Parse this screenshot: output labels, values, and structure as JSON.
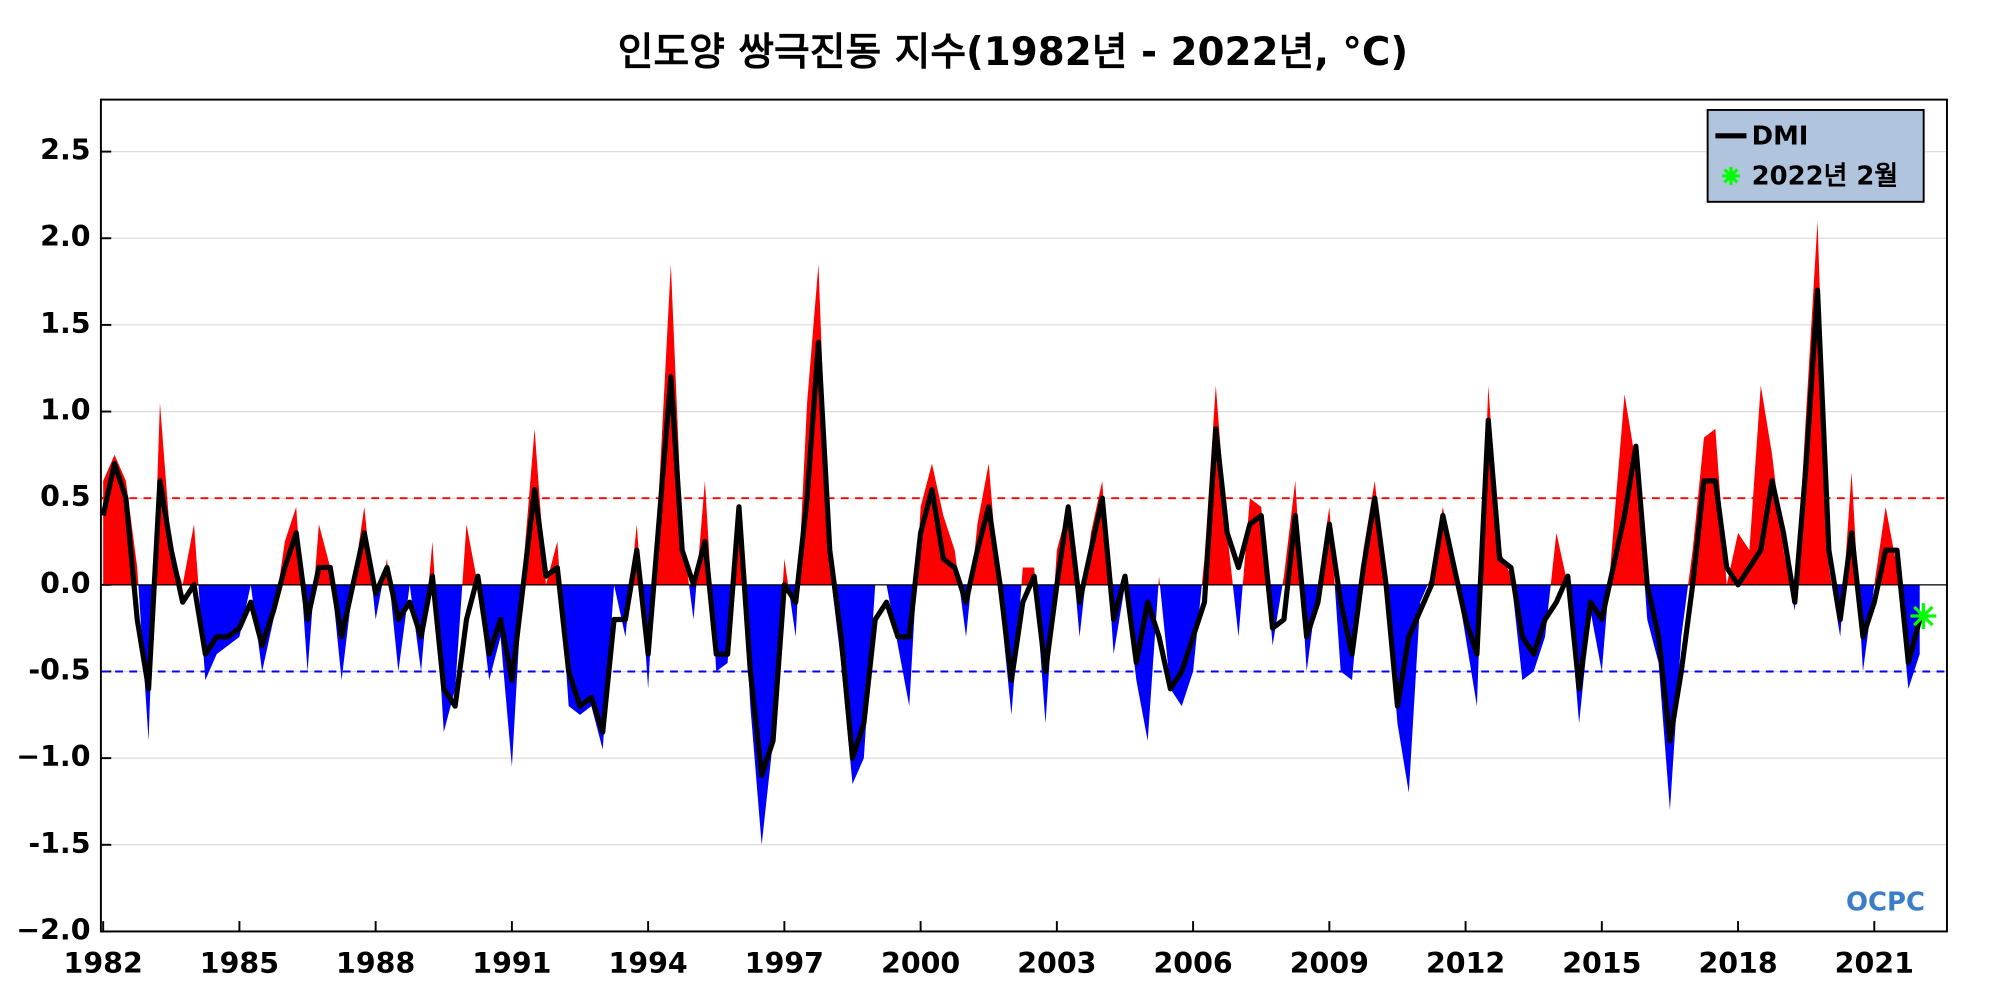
{
  "chart_data": {
    "type": "area_line",
    "title": "인도양 쌍극진동 지수(1982년 - 2022년, °C)",
    "logo": "OCPC",
    "x": [
      1982,
      1982.25,
      1982.5,
      1982.75,
      1983,
      1983.25,
      1983.5,
      1983.75,
      1984,
      1984.25,
      1984.5,
      1984.75,
      1985,
      1985.25,
      1985.5,
      1985.75,
      1986,
      1986.25,
      1986.5,
      1986.75,
      1987,
      1987.25,
      1987.5,
      1987.75,
      1988,
      1988.25,
      1988.5,
      1988.75,
      1989,
      1989.25,
      1989.5,
      1989.75,
      1990,
      1990.25,
      1990.5,
      1990.75,
      1991,
      1991.25,
      1991.5,
      1991.75,
      1992,
      1992.25,
      1992.5,
      1992.75,
      1993,
      1993.25,
      1993.5,
      1993.75,
      1994,
      1994.25,
      1994.5,
      1994.75,
      1995,
      1995.25,
      1995.5,
      1995.75,
      1996,
      1996.25,
      1996.5,
      1996.75,
      1997,
      1997.25,
      1997.5,
      1997.75,
      1998,
      1998.25,
      1998.5,
      1998.75,
      1999,
      1999.25,
      1999.5,
      1999.75,
      2000,
      2000.25,
      2000.5,
      2000.75,
      2001,
      2001.25,
      2001.5,
      2001.75,
      2002,
      2002.25,
      2002.5,
      2002.75,
      2003,
      2003.25,
      2003.5,
      2003.75,
      2004,
      2004.25,
      2004.5,
      2004.75,
      2005,
      2005.25,
      2005.5,
      2005.75,
      2006,
      2006.25,
      2006.5,
      2006.75,
      2007,
      2007.25,
      2007.5,
      2007.75,
      2008,
      2008.25,
      2008.5,
      2008.75,
      2009,
      2009.25,
      2009.5,
      2009.75,
      2010,
      2010.25,
      2010.5,
      2010.75,
      2011,
      2011.25,
      2011.5,
      2011.75,
      2012,
      2012.25,
      2012.5,
      2012.75,
      2013,
      2013.25,
      2013.5,
      2013.75,
      2014,
      2014.25,
      2014.5,
      2014.75,
      2015,
      2015.25,
      2015.5,
      2015.75,
      2016,
      2016.25,
      2016.5,
      2016.75,
      2017,
      2017.25,
      2017.5,
      2017.75,
      2018,
      2018.25,
      2018.5,
      2018.75,
      2019,
      2019.25,
      2019.5,
      2019.75,
      2020,
      2020.25,
      2020.5,
      2020.75,
      2021,
      2021.25,
      2021.5,
      2021.75,
      2022
    ],
    "area_values": [
      0.6,
      0.75,
      0.6,
      0.1,
      -0.9,
      1.05,
      0.2,
      0.0,
      0.35,
      -0.55,
      -0.4,
      -0.35,
      -0.3,
      0.0,
      -0.5,
      -0.2,
      0.25,
      0.45,
      -0.5,
      0.35,
      0.1,
      -0.55,
      0.0,
      0.45,
      -0.2,
      0.15,
      -0.5,
      0.0,
      -0.5,
      0.25,
      -0.85,
      -0.6,
      0.35,
      0.0,
      -0.55,
      -0.3,
      -1.05,
      0.1,
      0.9,
      0.0,
      0.25,
      -0.7,
      -0.75,
      -0.7,
      -0.95,
      0.0,
      -0.3,
      0.35,
      -0.6,
      0.6,
      1.85,
      0.3,
      -0.2,
      0.6,
      -0.5,
      -0.45,
      0.45,
      -0.7,
      -1.5,
      -0.9,
      0.15,
      -0.3,
      1.05,
      1.85,
      0.1,
      -0.45,
      -1.15,
      -1.0,
      0.0,
      0.0,
      -0.35,
      -0.7,
      0.45,
      0.7,
      0.4,
      0.2,
      -0.3,
      0.35,
      0.7,
      -0.1,
      -0.75,
      0.1,
      0.1,
      -0.8,
      0.2,
      0.45,
      -0.3,
      0.3,
      0.6,
      -0.4,
      0.0,
      -0.55,
      -0.9,
      0.05,
      -0.6,
      -0.7,
      -0.5,
      0.15,
      1.15,
      0.3,
      -0.3,
      0.5,
      0.45,
      -0.35,
      0.05,
      0.6,
      -0.5,
      0.0,
      0.45,
      -0.5,
      -0.55,
      0.2,
      0.6,
      0.0,
      -0.8,
      -1.2,
      -0.1,
      0.05,
      0.45,
      0.1,
      -0.3,
      -0.7,
      1.15,
      0.2,
      0.05,
      -0.55,
      -0.5,
      -0.3,
      0.3,
      0.0,
      -0.8,
      -0.15,
      -0.5,
      0.3,
      1.1,
      0.7,
      -0.2,
      -0.45,
      -1.3,
      -0.3,
      0.2,
      0.85,
      0.9,
      0.0,
      0.3,
      0.2,
      1.15,
      0.75,
      0.2,
      -0.15,
      1.0,
      2.1,
      0.1,
      -0.3,
      0.65,
      -0.5,
      0.0,
      0.45,
      0.1,
      -0.6,
      -0.4
    ],
    "positive_color": "#ff0000",
    "negative_color": "#0000ff",
    "series": [
      {
        "name": "DMI",
        "color": "#000000",
        "values": [
          0.4,
          0.7,
          0.5,
          -0.2,
          -0.6,
          0.6,
          0.2,
          -0.1,
          0.0,
          -0.4,
          -0.3,
          -0.3,
          -0.25,
          -0.1,
          -0.35,
          -0.15,
          0.1,
          0.3,
          -0.2,
          0.1,
          0.1,
          -0.3,
          0.0,
          0.3,
          -0.05,
          0.1,
          -0.2,
          -0.1,
          -0.3,
          0.05,
          -0.6,
          -0.7,
          -0.2,
          0.05,
          -0.4,
          -0.2,
          -0.55,
          0.0,
          0.55,
          0.05,
          0.1,
          -0.5,
          -0.7,
          -0.65,
          -0.85,
          -0.2,
          -0.2,
          0.2,
          -0.4,
          0.4,
          1.2,
          0.2,
          0.0,
          0.25,
          -0.4,
          -0.4,
          0.45,
          -0.5,
          -1.1,
          -0.9,
          0.0,
          -0.1,
          0.5,
          1.4,
          0.2,
          -0.3,
          -1.0,
          -0.8,
          -0.2,
          -0.1,
          -0.3,
          -0.3,
          0.3,
          0.55,
          0.15,
          0.1,
          -0.1,
          0.2,
          0.45,
          0.0,
          -0.55,
          -0.1,
          0.05,
          -0.5,
          0.0,
          0.45,
          -0.1,
          0.2,
          0.5,
          -0.2,
          0.05,
          -0.45,
          -0.1,
          -0.3,
          -0.6,
          -0.5,
          -0.3,
          -0.1,
          0.9,
          0.3,
          0.1,
          0.35,
          0.4,
          -0.25,
          -0.2,
          0.4,
          -0.3,
          -0.1,
          0.35,
          -0.1,
          -0.4,
          0.1,
          0.5,
          0.0,
          -0.7,
          -0.3,
          -0.15,
          0.0,
          0.4,
          0.1,
          -0.2,
          -0.4,
          0.95,
          0.15,
          0.1,
          -0.3,
          -0.4,
          -0.2,
          -0.1,
          0.05,
          -0.6,
          -0.1,
          -0.2,
          0.1,
          0.4,
          0.8,
          0.0,
          -0.3,
          -0.9,
          -0.5,
          0.0,
          0.6,
          0.6,
          0.1,
          0.0,
          0.1,
          0.2,
          0.6,
          0.3,
          -0.1,
          0.7,
          1.7,
          0.2,
          -0.2,
          0.3,
          -0.3,
          -0.1,
          0.2,
          0.2,
          -0.45,
          -0.2
        ]
      }
    ],
    "highlight": {
      "name": "2022년 2월",
      "x": 2022.08,
      "y": -0.18,
      "color": "#00ff00"
    },
    "reference_lines": [
      {
        "value": 0.5,
        "color": "#ff0000"
      },
      {
        "value": -0.5,
        "color": "#0000ff"
      }
    ],
    "xlim": [
      1981.95,
      2022.6
    ],
    "xticks": [
      1982,
      1985,
      1988,
      1991,
      1994,
      1997,
      2000,
      2003,
      2006,
      2009,
      2012,
      2015,
      2018,
      2021
    ],
    "ylim": [
      -2.0,
      2.8
    ],
    "yticks": [
      {
        "value": -2,
        "label": "−2.0"
      },
      -1.5,
      {
        "value": -1,
        "label": "−1.0"
      },
      -0.5,
      {
        "value": 0,
        "label": "0.0"
      },
      0.5,
      {
        "value": 1,
        "label": "1.0"
      },
      1.5,
      {
        "value": 2,
        "label": "2.0"
      },
      2.5
    ],
    "grid": true,
    "legend": "upper right"
  }
}
